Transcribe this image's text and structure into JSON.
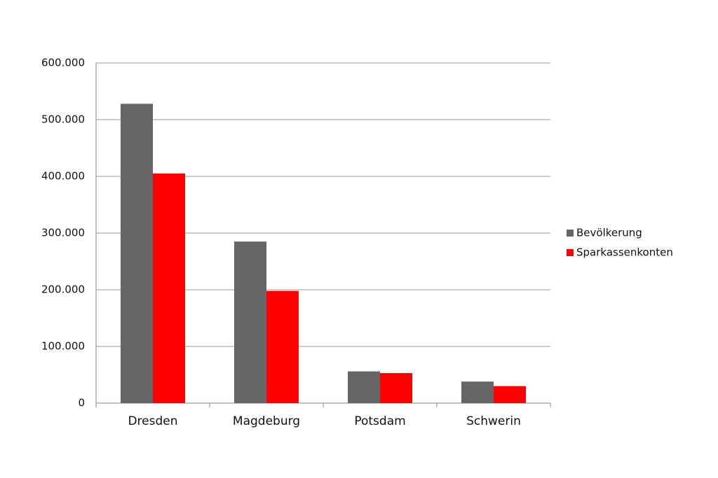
{
  "chart_data": {
    "type": "bar",
    "categories": [
      "Dresden",
      "Magdeburg",
      "Potsdam",
      "Schwerin"
    ],
    "series": [
      {
        "name": "Bevölkerung",
        "color": "#666666",
        "values": [
          528000,
          285000,
          56000,
          38000
        ]
      },
      {
        "name": "Sparkassenkonten",
        "color": "#ff0000",
        "values": [
          405000,
          198000,
          53000,
          30000
        ]
      }
    ],
    "ylim": [
      0,
      600000
    ],
    "yticks": [
      0,
      {
        "value": 100000,
        "label": "100.000"
      },
      {
        "value": 200000,
        "label": "200.000"
      },
      {
        "value": 300000,
        "label": "300.000"
      },
      {
        "value": 400000,
        "label": "400.000"
      },
      {
        "value": 500000,
        "label": "500.000"
      },
      {
        "value": 600000,
        "label": "600.000"
      }
    ],
    "grid": true,
    "legend": "right"
  }
}
